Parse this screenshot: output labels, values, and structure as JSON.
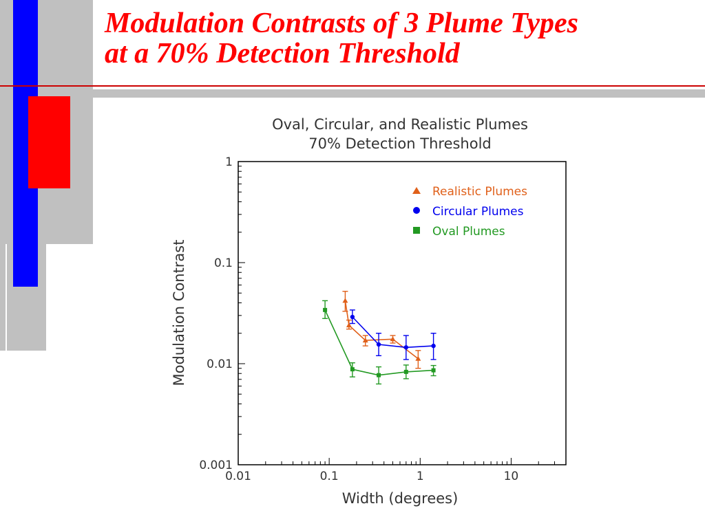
{
  "slide": {
    "title_line1": "Modulation Contrasts of 3 Plume Types",
    "title_line2": "at a 70% Detection Threshold",
    "accent_red": "#ff0000",
    "accent_blue": "#0000ff",
    "accent_gray": "#c0c0c0"
  },
  "chart_data": {
    "type": "line",
    "title_line1": "Oval, Circular, and Realistic Plumes",
    "title_line2": "70% Detection Threshold",
    "xlabel": "Width (degrees)",
    "ylabel": "Modulation Contrast",
    "xscale": "log",
    "yscale": "log",
    "xlim": [
      0.01,
      40
    ],
    "ylim": [
      0.001,
      1
    ],
    "x_ticks": [
      {
        "v": 0.01,
        "label": "0.01"
      },
      {
        "v": 0.1,
        "label": "0.1"
      },
      {
        "v": 1,
        "label": "1"
      },
      {
        "v": 10,
        "label": "10"
      }
    ],
    "y_ticks": [
      {
        "v": 0.001,
        "label": "0.001"
      },
      {
        "v": 0.01,
        "label": "0.01"
      },
      {
        "v": 0.1,
        "label": "0.1"
      },
      {
        "v": 1,
        "label": "1"
      }
    ],
    "grid": false,
    "legend_position": "top-right",
    "series": [
      {
        "name": "Realistic Plumes",
        "color": "#e0601a",
        "marker": "triangle",
        "points": [
          {
            "x": 0.15,
            "y": 0.042,
            "lo": 0.033,
            "hi": 0.052
          },
          {
            "x": 0.165,
            "y": 0.024,
            "lo": 0.022,
            "hi": 0.027
          },
          {
            "x": 0.25,
            "y": 0.017,
            "lo": 0.015,
            "hi": 0.019
          },
          {
            "x": 0.5,
            "y": 0.0175,
            "lo": 0.016,
            "hi": 0.019
          },
          {
            "x": 0.95,
            "y": 0.0112,
            "lo": 0.009,
            "hi": 0.0135
          }
        ]
      },
      {
        "name": "Circular Plumes",
        "color": "#0000ee",
        "marker": "circle",
        "points": [
          {
            "x": 0.18,
            "y": 0.029,
            "lo": 0.025,
            "hi": 0.034
          },
          {
            "x": 0.35,
            "y": 0.0155,
            "lo": 0.012,
            "hi": 0.02
          },
          {
            "x": 0.7,
            "y": 0.0145,
            "lo": 0.011,
            "hi": 0.019
          },
          {
            "x": 1.4,
            "y": 0.015,
            "lo": 0.011,
            "hi": 0.02
          }
        ]
      },
      {
        "name": "Oval Plumes",
        "color": "#229922",
        "marker": "square",
        "points": [
          {
            "x": 0.09,
            "y": 0.034,
            "lo": 0.028,
            "hi": 0.042
          },
          {
            "x": 0.18,
            "y": 0.0088,
            "lo": 0.0074,
            "hi": 0.0102
          },
          {
            "x": 0.35,
            "y": 0.0077,
            "lo": 0.0063,
            "hi": 0.0093
          },
          {
            "x": 0.7,
            "y": 0.0083,
            "lo": 0.0071,
            "hi": 0.0097
          },
          {
            "x": 1.4,
            "y": 0.0086,
            "lo": 0.0076,
            "hi": 0.0096
          }
        ]
      }
    ]
  }
}
